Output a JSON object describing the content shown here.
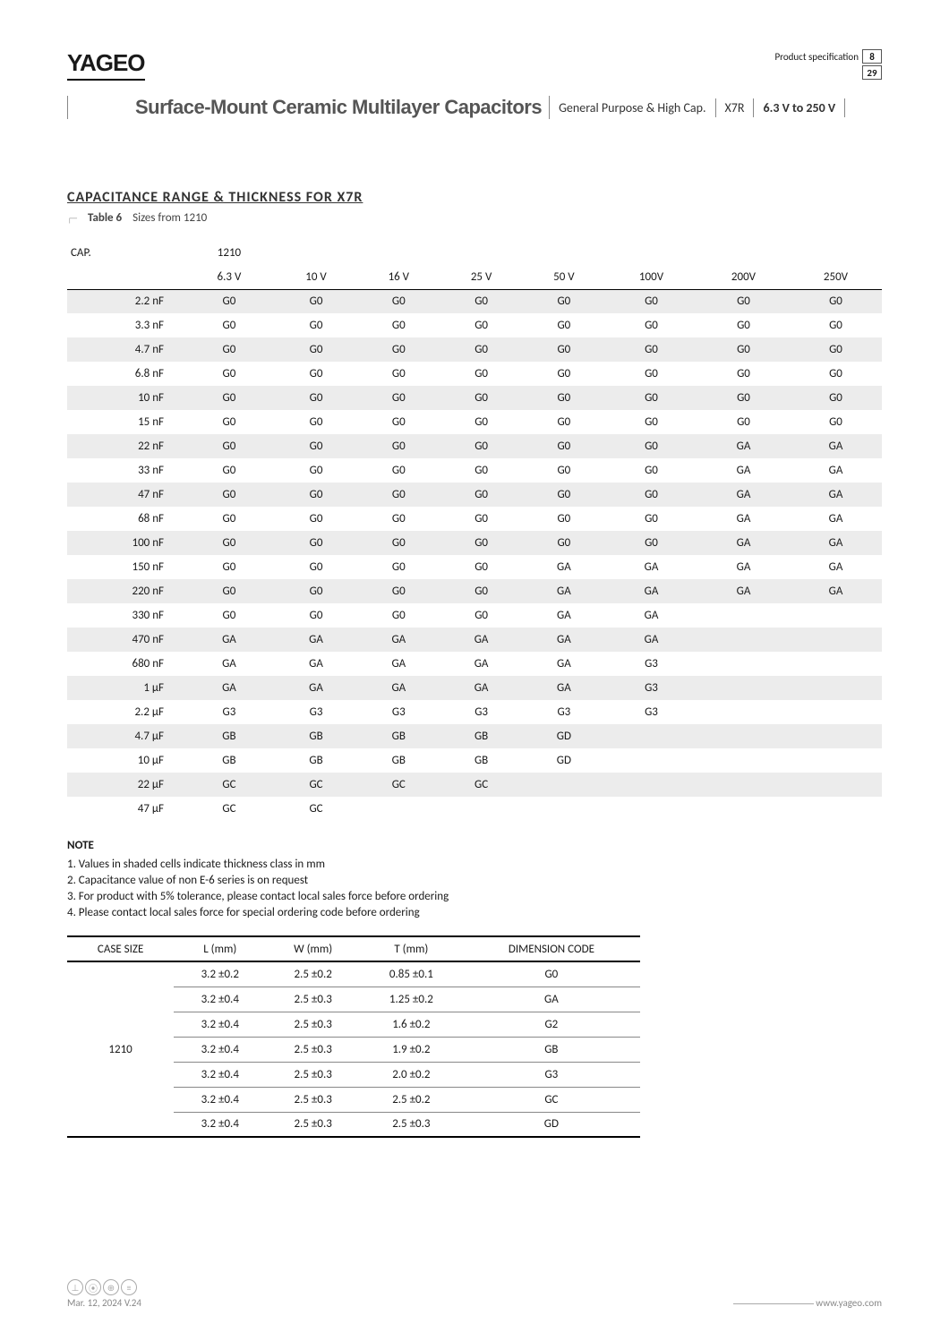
{
  "header": {
    "logo": "YAGEO",
    "product_spec_label": "Product specification",
    "page_current": "8",
    "page_total": "29",
    "title": "Surface-Mount Ceramic Multilayer Capacitors",
    "chip1": "General Purpose & High Cap.",
    "chip2": "X7R",
    "chip3": "6.3 V to 250 V"
  },
  "section": {
    "title": "CAPACITANCE RANGE & THICKNESS FOR X7R",
    "table_label": "Table 6",
    "table_desc": "Sizes from 1210"
  },
  "cap_table": {
    "corner": "CAP.",
    "size_header": "1210",
    "voltages": [
      "6.3 V",
      "10 V",
      "16 V",
      "25 V",
      "50 V",
      "100V",
      "200V",
      "250V"
    ],
    "rows": [
      {
        "cap": "2.2 nF",
        "cells": [
          "G0",
          "G0",
          "G0",
          "G0",
          "G0",
          "G0",
          "G0",
          "G0"
        ],
        "shade": true
      },
      {
        "cap": "3.3 nF",
        "cells": [
          "G0",
          "G0",
          "G0",
          "G0",
          "G0",
          "G0",
          "G0",
          "G0"
        ],
        "shade": false
      },
      {
        "cap": "4.7 nF",
        "cells": [
          "G0",
          "G0",
          "G0",
          "G0",
          "G0",
          "G0",
          "G0",
          "G0"
        ],
        "shade": true
      },
      {
        "cap": "6.8 nF",
        "cells": [
          "G0",
          "G0",
          "G0",
          "G0",
          "G0",
          "G0",
          "G0",
          "G0"
        ],
        "shade": false
      },
      {
        "cap": "10 nF",
        "cells": [
          "G0",
          "G0",
          "G0",
          "G0",
          "G0",
          "G0",
          "G0",
          "G0"
        ],
        "shade": true
      },
      {
        "cap": "15 nF",
        "cells": [
          "G0",
          "G0",
          "G0",
          "G0",
          "G0",
          "G0",
          "G0",
          "G0"
        ],
        "shade": false
      },
      {
        "cap": "22 nF",
        "cells": [
          "G0",
          "G0",
          "G0",
          "G0",
          "G0",
          "G0",
          "GA",
          "GA"
        ],
        "shade": true
      },
      {
        "cap": "33 nF",
        "cells": [
          "G0",
          "G0",
          "G0",
          "G0",
          "G0",
          "G0",
          "GA",
          "GA"
        ],
        "shade": false
      },
      {
        "cap": "47 nF",
        "cells": [
          "G0",
          "G0",
          "G0",
          "G0",
          "G0",
          "G0",
          "GA",
          "GA"
        ],
        "shade": true
      },
      {
        "cap": "68 nF",
        "cells": [
          "G0",
          "G0",
          "G0",
          "G0",
          "G0",
          "G0",
          "GA",
          "GA"
        ],
        "shade": false
      },
      {
        "cap": "100 nF",
        "cells": [
          "G0",
          "G0",
          "G0",
          "G0",
          "G0",
          "G0",
          "GA",
          "GA"
        ],
        "shade": true
      },
      {
        "cap": "150 nF",
        "cells": [
          "G0",
          "G0",
          "G0",
          "G0",
          "GA",
          "GA",
          "GA",
          "GA"
        ],
        "shade": false
      },
      {
        "cap": "220 nF",
        "cells": [
          "G0",
          "G0",
          "G0",
          "G0",
          "GA",
          "GA",
          "GA",
          "GA"
        ],
        "shade": true
      },
      {
        "cap": "330 nF",
        "cells": [
          "G0",
          "G0",
          "G0",
          "G0",
          "GA",
          "GA",
          "",
          ""
        ],
        "shade": false
      },
      {
        "cap": "470 nF",
        "cells": [
          "GA",
          "GA",
          "GA",
          "GA",
          "GA",
          "GA",
          "",
          ""
        ],
        "shade": true
      },
      {
        "cap": "680 nF",
        "cells": [
          "GA",
          "GA",
          "GA",
          "GA",
          "GA",
          "G3",
          "",
          ""
        ],
        "shade": false
      },
      {
        "cap": "1 µF",
        "cells": [
          "GA",
          "GA",
          "GA",
          "GA",
          "GA",
          "G3",
          "",
          ""
        ],
        "shade": true
      },
      {
        "cap": "2.2 µF",
        "cells": [
          "G3",
          "G3",
          "G3",
          "G3",
          "G3",
          "G3",
          "",
          ""
        ],
        "shade": false
      },
      {
        "cap": "4.7 µF",
        "cells": [
          "GB",
          "GB",
          "GB",
          "GB",
          "GD",
          "",
          "",
          ""
        ],
        "shade": true
      },
      {
        "cap": "10 µF",
        "cells": [
          "GB",
          "GB",
          "GB",
          "GB",
          "GD",
          "",
          "",
          ""
        ],
        "shade": false
      },
      {
        "cap": "22 µF",
        "cells": [
          "GC",
          "GC",
          "GC",
          "GC",
          "",
          "",
          "",
          ""
        ],
        "shade": true
      },
      {
        "cap": "47 µF",
        "cells": [
          "GC",
          "GC",
          "",
          "",
          "",
          "",
          "",
          ""
        ],
        "shade": false
      }
    ]
  },
  "notes": {
    "header": "NOTE",
    "items": [
      "1. Values in shaded cells indicate thickness class in mm",
      "2. Capacitance value of non E-6 series is on request",
      "3. For product with 5% tolerance, please contact local sales force before ordering",
      "4. Please contact local sales force for special ordering code before ordering"
    ]
  },
  "dim_table": {
    "headers": [
      "CASE SIZE",
      "L (mm)",
      "W (mm)",
      "T (mm)",
      "DIMENSION CODE"
    ],
    "case_size": "1210",
    "rows": [
      [
        "3.2 ±0.2",
        "2.5 ±0.2",
        "0.85 ±0.1",
        "G0"
      ],
      [
        "3.2 ±0.4",
        "2.5 ±0.3",
        "1.25 ±0.2",
        "GA"
      ],
      [
        "3.2 ±0.4",
        "2.5 ±0.3",
        "1.6 ±0.2",
        "G2"
      ],
      [
        "3.2 ±0.4",
        "2.5 ±0.3",
        "1.9 ±0.2",
        "GB"
      ],
      [
        "3.2 ±0.4",
        "2.5 ±0.3",
        "2.0 ±0.2",
        "G3"
      ],
      [
        "3.2 ±0.4",
        "2.5 ±0.3",
        "2.5 ±0.2",
        "GC"
      ],
      [
        "3.2 ±0.4",
        "2.5 ±0.3",
        "2.5 ±0.3",
        "GD"
      ]
    ]
  },
  "footer": {
    "date_version": "Mar. 12, 2024  V.24",
    "url": "www.yageo.com",
    "icon_glyphs": [
      "⊥",
      "⦿",
      "⊕",
      "≡"
    ]
  },
  "style": {
    "shade_bg": "#ececec",
    "border_color": "#000000",
    "text_color": "#1a1a1a",
    "muted": "#888888"
  }
}
